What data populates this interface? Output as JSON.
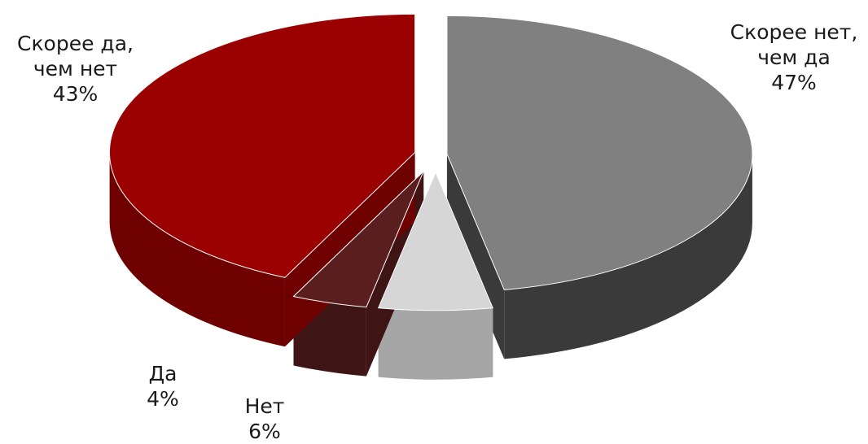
{
  "chart_data": {
    "type": "pie",
    "three_d": true,
    "exploded": true,
    "start_angle_deg": 90,
    "slices": [
      {
        "label_lines": [
          "Скорее нет,",
          "чем да"
        ],
        "pct_text": "47%",
        "value": 47,
        "top_color": "#808080",
        "side_color": "#3a3a3a"
      },
      {
        "label_lines": [
          "Нет"
        ],
        "pct_text": "6%",
        "value": 6,
        "top_color": "#d6d6d6",
        "side_color": "#a6a6a6"
      },
      {
        "label_lines": [
          "Да"
        ],
        "pct_text": "4%",
        "value": 4,
        "top_color": "#5a1e1e",
        "side_color": "#3e1414"
      },
      {
        "label_lines": [
          "Скорее да,",
          "чем нет"
        ],
        "pct_text": "43%",
        "value": 43,
        "top_color": "#9b0000",
        "side_color": "#6e0000"
      }
    ]
  }
}
